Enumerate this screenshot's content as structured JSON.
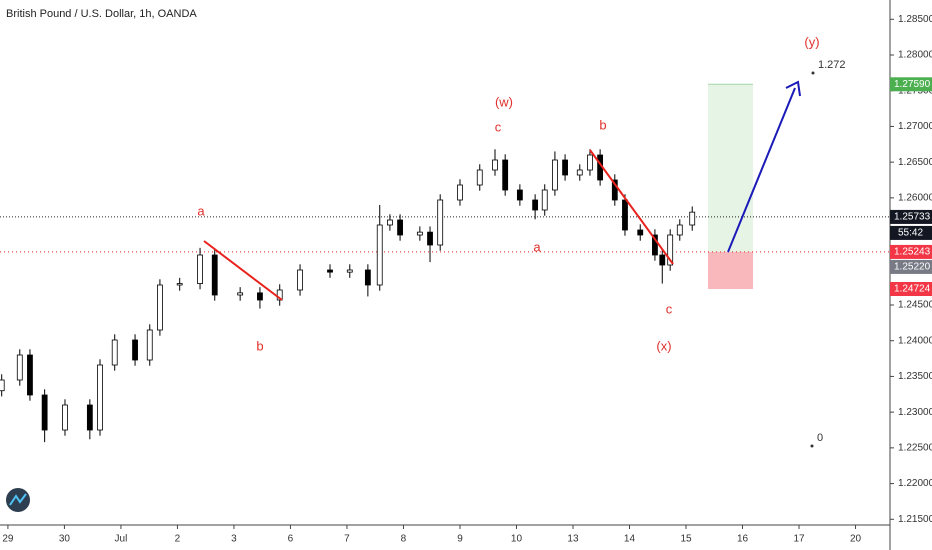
{
  "chart_data": {
    "type": "candlestick",
    "title": "British Pound / U.S. Dollar, 1h, OANDA",
    "xlim": [
      -0.14,
      15.61
    ],
    "xticks": [
      {
        "value": 0,
        "label": "29"
      },
      {
        "value": 1,
        "label": "30"
      },
      {
        "value": 2,
        "label": "Jul"
      },
      {
        "value": 3,
        "label": "2"
      },
      {
        "value": 4,
        "label": "3"
      },
      {
        "value": 5,
        "label": "6"
      },
      {
        "value": 6,
        "label": "7"
      },
      {
        "value": 7,
        "label": "8"
      },
      {
        "value": 8,
        "label": "9"
      },
      {
        "value": 9,
        "label": "10"
      },
      {
        "value": 10,
        "label": "13"
      },
      {
        "value": 11,
        "label": "14"
      },
      {
        "value": 12,
        "label": "15"
      },
      {
        "value": 13,
        "label": "16"
      },
      {
        "value": 14,
        "label": "17"
      },
      {
        "value": 15,
        "label": "20"
      }
    ],
    "ylim": [
      1.2142,
      1.2877
    ],
    "yticks": [
      {
        "value": 1.285,
        "label": "1.28500"
      },
      {
        "value": 1.28,
        "label": "1.28000"
      },
      {
        "value": 1.275,
        "label": "1.27500"
      },
      {
        "value": 1.27,
        "label": "1.27000"
      },
      {
        "value": 1.265,
        "label": "1.26500"
      },
      {
        "value": 1.26,
        "label": "1.26000"
      },
      {
        "value": 1.255,
        "label": "1.25500"
      },
      {
        "value": 1.25,
        "label": "1.25000"
      },
      {
        "value": 1.245,
        "label": "1.24500"
      },
      {
        "value": 1.24,
        "label": "1.24000"
      },
      {
        "value": 1.235,
        "label": "1.23500"
      },
      {
        "value": 1.23,
        "label": "1.23000"
      },
      {
        "value": 1.225,
        "label": "1.22500"
      },
      {
        "value": 1.22,
        "label": "1.22000"
      },
      {
        "value": 1.215,
        "label": "1.21500"
      }
    ],
    "x": [
      -0.11,
      0.21,
      0.39,
      0.65,
      1.01,
      1.45,
      1.63,
      1.89,
      2.25,
      2.51,
      2.69,
      3.04,
      3.4,
      3.66,
      4.11,
      4.46,
      4.81,
      5.17,
      5.7,
      6.05,
      6.37,
      6.58,
      6.76,
      6.94,
      7.29,
      7.47,
      7.65,
      8.0,
      8.35,
      8.62,
      8.8,
      9.06,
      9.33,
      9.5,
      9.68,
      9.86,
      10.12,
      10.3,
      10.48,
      10.74,
      10.92,
      11.19,
      11.45,
      11.58,
      11.72,
      11.89,
      12.11
    ],
    "open": [
      1.233,
      1.2345,
      1.238,
      1.2324,
      1.2275,
      1.231,
      1.2275,
      1.2366,
      1.2401,
      1.2373,
      1.2415,
      1.2478,
      1.248,
      1.252,
      1.2464,
      1.2467,
      1.2457,
      1.2471,
      1.2499,
      1.2496,
      1.2499,
      1.2478,
      1.2562,
      1.2569,
      1.2548,
      1.2552,
      1.2534,
      1.2597,
      1.2618,
      1.2639,
      1.2653,
      1.2611,
      1.2597,
      1.2583,
      1.2611,
      1.2653,
      1.2632,
      1.2639,
      1.266,
      1.2625,
      1.2597,
      1.2555,
      1.2548,
      1.252,
      1.2506,
      1.2548,
      1.2562
    ],
    "high": [
      1.2353,
      1.2388,
      1.2388,
      1.2332,
      1.2318,
      1.2318,
      1.2374,
      1.2409,
      1.2409,
      1.2423,
      1.2486,
      1.2488,
      1.253,
      1.2528,
      1.2475,
      1.2475,
      1.2479,
      1.2507,
      1.2507,
      1.2507,
      1.2507,
      1.259,
      1.2577,
      1.2577,
      1.256,
      1.256,
      1.2605,
      1.2626,
      1.2647,
      1.2668,
      1.2661,
      1.2619,
      1.2605,
      1.2619,
      1.2665,
      1.2661,
      1.2647,
      1.2668,
      1.2668,
      1.2633,
      1.2605,
      1.2563,
      1.2556,
      1.2528,
      1.2556,
      1.257,
      1.2588
    ],
    "low": [
      1.2322,
      1.2337,
      1.2316,
      1.2258,
      1.2267,
      1.2262,
      1.2267,
      1.2358,
      1.2365,
      1.2365,
      1.2407,
      1.247,
      1.2472,
      1.2456,
      1.2456,
      1.2445,
      1.2449,
      1.2463,
      1.2488,
      1.2488,
      1.2462,
      1.247,
      1.2554,
      1.254,
      1.254,
      1.251,
      1.2526,
      1.2589,
      1.261,
      1.2631,
      1.2603,
      1.2589,
      1.257,
      1.2575,
      1.2603,
      1.2624,
      1.2624,
      1.2631,
      1.2617,
      1.2589,
      1.2547,
      1.254,
      1.2512,
      1.248,
      1.2498,
      1.254,
      1.2554
    ],
    "close": [
      1.2345,
      1.238,
      1.2324,
      1.2275,
      1.231,
      1.2275,
      1.2366,
      1.2401,
      1.2373,
      1.2415,
      1.2478,
      1.248,
      1.252,
      1.2464,
      1.2467,
      1.2457,
      1.2471,
      1.2499,
      1.2496,
      1.2499,
      1.2478,
      1.2562,
      1.2569,
      1.2548,
      1.2552,
      1.2534,
      1.2597,
      1.2618,
      1.2639,
      1.2653,
      1.2611,
      1.2597,
      1.2583,
      1.2611,
      1.2653,
      1.2632,
      1.2639,
      1.266,
      1.2625,
      1.2597,
      1.2555,
      1.2548,
      1.252,
      1.2506,
      1.2548,
      1.2562,
      1.258
    ],
    "up_color": "#ffffff",
    "down_color": "#000000",
    "price_labels": [
      {
        "value": 1.2759,
        "label": "1.27590",
        "color": "#4caf50"
      },
      {
        "value": 1.25733,
        "label": "1.25733",
        "color": "#131722"
      },
      {
        "value": 1.25243,
        "label": "1.25243",
        "color": "#f23645"
      },
      {
        "value": 1.2522,
        "label": "1.25220",
        "color": "#787b86"
      },
      {
        "value": 1.24724,
        "label": "1.24724",
        "color": "#f23645"
      }
    ],
    "countdown": "55:42",
    "annotations": [
      "(w)",
      "c",
      "(y)",
      "b",
      "a",
      "a",
      "b",
      "c",
      "(x)",
      "1.272",
      "0"
    ]
  }
}
